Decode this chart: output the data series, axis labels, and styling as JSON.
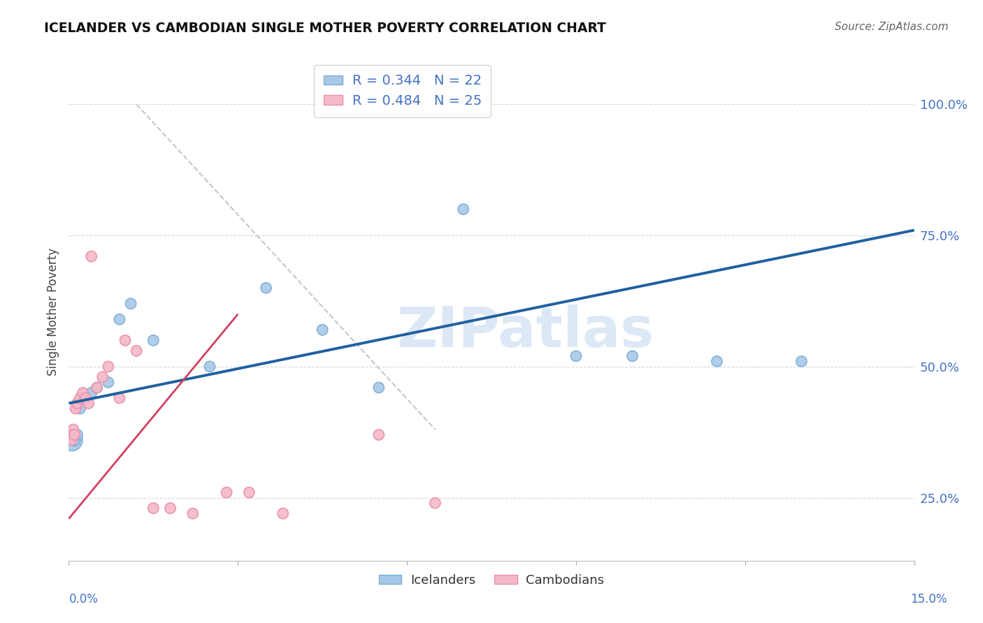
{
  "title": "ICELANDER VS CAMBODIAN SINGLE MOTHER POVERTY CORRELATION CHART",
  "source": "Source: ZipAtlas.com",
  "ylabel": "Single Mother Poverty",
  "xlim": [
    0.0,
    15.0
  ],
  "ylim": [
    13.0,
    108.0
  ],
  "yticks": [
    25.0,
    50.0,
    75.0,
    100.0
  ],
  "ytick_labels": [
    "25.0%",
    "50.0%",
    "75.0%",
    "100.0%"
  ],
  "icelanders_R": "0.344",
  "icelanders_N": "22",
  "cambodians_R": "0.484",
  "cambodians_N": "25",
  "blue_color": "#a8c8e8",
  "blue_edge_color": "#7bafd4",
  "pink_color": "#f5b8c8",
  "pink_edge_color": "#e890a8",
  "blue_line_color": "#2060a0",
  "pink_line_color": "#d04060",
  "gray_dash_color": "#c0c0c0",
  "watermark_color": "#dce8f5",
  "grid_color": "#d8d8d8",
  "icelanders_x": [
    0.05,
    0.1,
    0.15,
    0.2,
    0.3,
    0.4,
    0.5,
    0.7,
    0.9,
    1.1,
    1.5,
    2.5,
    3.5,
    4.5,
    5.5,
    7.0,
    9.0,
    10.0,
    11.5,
    13.0
  ],
  "icelanders_y": [
    36,
    36,
    37,
    42,
    44,
    45,
    46,
    47,
    59,
    62,
    55,
    50,
    65,
    57,
    46,
    80,
    52,
    52,
    51,
    51
  ],
  "icelanders_size": [
    500,
    150,
    120,
    120,
    120,
    120,
    120,
    120,
    120,
    120,
    120,
    120,
    120,
    120,
    120,
    120,
    120,
    120,
    120,
    120
  ],
  "cambodians_x": [
    0.05,
    0.08,
    0.1,
    0.12,
    0.15,
    0.2,
    0.25,
    0.3,
    0.35,
    0.4,
    0.5,
    0.6,
    0.7,
    0.9,
    1.0,
    1.2,
    1.5,
    1.8,
    2.2,
    2.8,
    3.2,
    3.8,
    5.5,
    6.5
  ],
  "cambodians_y": [
    36,
    38,
    37,
    42,
    43,
    44,
    45,
    44,
    43,
    71,
    46,
    48,
    50,
    44,
    55,
    53,
    23,
    23,
    22,
    26,
    26,
    22,
    37,
    24
  ],
  "cambodians_size": [
    120,
    120,
    120,
    120,
    120,
    120,
    120,
    120,
    120,
    120,
    120,
    120,
    120,
    120,
    120,
    120,
    120,
    120,
    120,
    120,
    120,
    120,
    120,
    120
  ],
  "blue_reg_x0": 0.0,
  "blue_reg_x1": 15.0,
  "blue_reg_y0": 43.0,
  "blue_reg_y1": 76.0,
  "pink_reg_x0": 0.0,
  "pink_reg_x1": 3.0,
  "pink_reg_y0": 21.0,
  "pink_reg_y1": 60.0,
  "gray_dash_x0": 0.0,
  "gray_dash_x1": 9.5,
  "gray_dash_y0": 100.0,
  "gray_dash_y1": 100.0
}
